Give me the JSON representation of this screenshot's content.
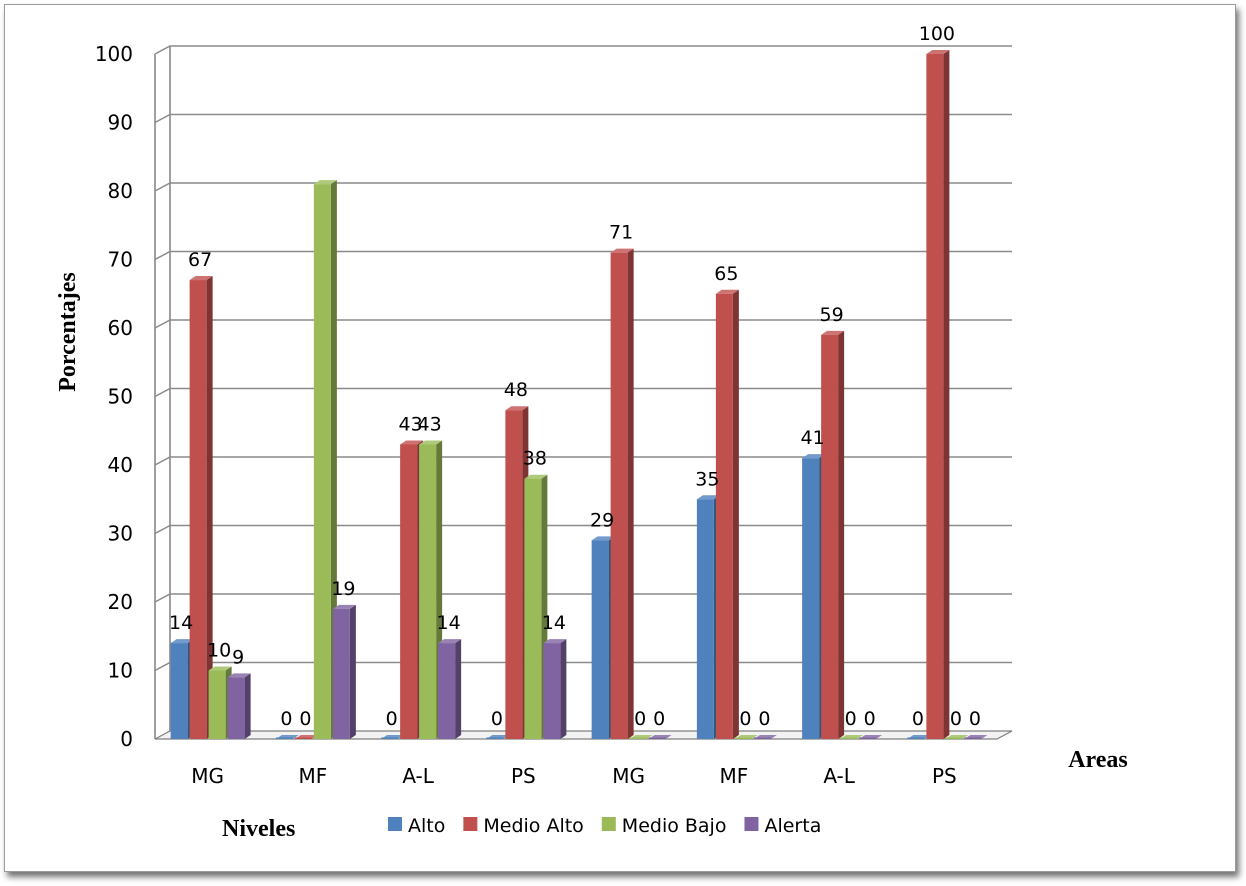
{
  "chart_data": {
    "type": "bar",
    "title": "",
    "xlabel": "Areas",
    "ylabel": "Porcentajes",
    "legend_title": "Niveles",
    "legend_position": "bottom",
    "grid": true,
    "ylim": [
      0,
      100
    ],
    "yticks": [
      "0",
      "10",
      "20",
      "30",
      "40",
      "50",
      "60",
      "70",
      "80",
      "90",
      "100"
    ],
    "categories": [
      "MG",
      "MF",
      "A-L",
      "PS",
      "MG",
      "MF",
      "A-L",
      "PS"
    ],
    "series": [
      {
        "name": "Alto",
        "color": "#4f81bd",
        "values": [
          14,
          0,
          0,
          0,
          29,
          35,
          41,
          0
        ]
      },
      {
        "name": "Medio Alto",
        "color": "#c0504d",
        "values": [
          67,
          0,
          43,
          48,
          71,
          65,
          59,
          100
        ]
      },
      {
        "name": "Medio Bajo",
        "color": "#9bbb59",
        "values": [
          10,
          81,
          43,
          38,
          0,
          0,
          0,
          0
        ]
      },
      {
        "name": "Alerta",
        "color": "#8064a2",
        "values": [
          9,
          19,
          14,
          14,
          0,
          0,
          0,
          0
        ]
      }
    ],
    "data_labels": [
      [
        "14",
        "0",
        "0",
        "0",
        "29",
        "35",
        "41",
        "0"
      ],
      [
        "67",
        "0",
        "43",
        "48",
        "71",
        "65",
        "59",
        "100"
      ],
      [
        "10",
        "",
        "43",
        "38",
        "0",
        "0",
        "0",
        "0"
      ],
      [
        "9",
        "19",
        "14",
        "14",
        "0",
        "0",
        "0",
        "0"
      ]
    ]
  }
}
